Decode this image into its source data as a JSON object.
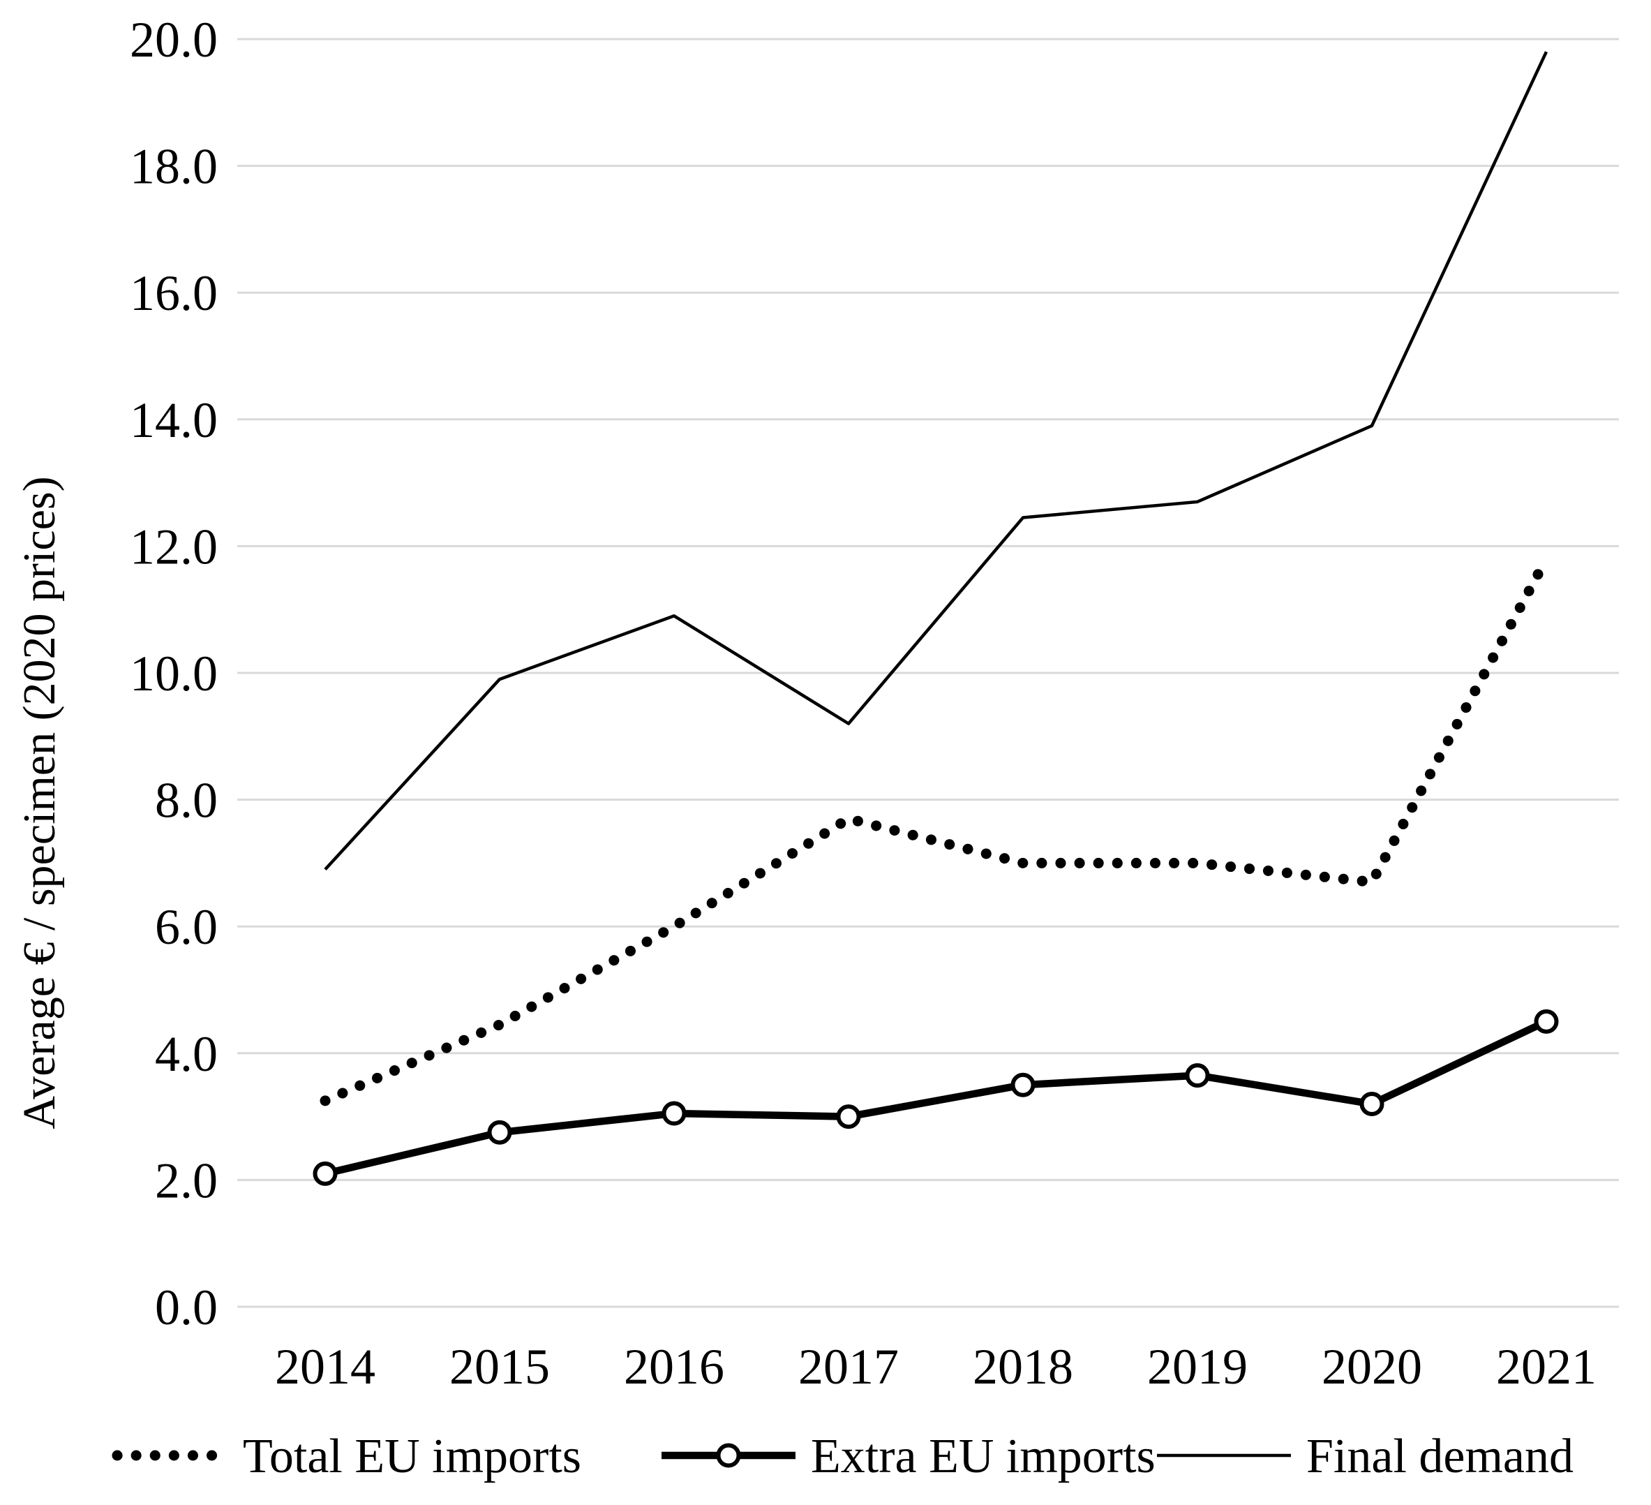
{
  "chart_data": {
    "type": "line",
    "title": "",
    "xlabel": "",
    "ylabel": "Average € / specimen (2020 prices)",
    "categories": [
      "2014",
      "2015",
      "2016",
      "2017",
      "2018",
      "2019",
      "2020",
      "2021"
    ],
    "series": [
      {
        "name": "Total EU imports",
        "line_style": "dotted",
        "marker": "none",
        "values": [
          3.25,
          4.45,
          6.0,
          7.7,
          7.0,
          7.0,
          6.7,
          11.8
        ]
      },
      {
        "name": "Extra EU imports",
        "line_style": "solid-thick",
        "marker": "open-circle",
        "values": [
          2.1,
          2.75,
          3.05,
          3.0,
          3.5,
          3.65,
          3.2,
          4.5
        ]
      },
      {
        "name": "Final demand",
        "line_style": "solid-thin",
        "marker": "none",
        "values": [
          6.9,
          9.9,
          10.9,
          9.2,
          12.45,
          12.7,
          13.9,
          19.8
        ]
      }
    ],
    "ylim": [
      0,
      20
    ],
    "y_tick_step": 2,
    "y_tick_labels": [
      "0.0",
      "2.0",
      "4.0",
      "6.0",
      "8.0",
      "10.0",
      "12.0",
      "14.0",
      "16.0",
      "18.0",
      "20.0"
    ],
    "grid": "horizontal-only",
    "legend_position": "bottom",
    "colors": {
      "line": "#000000",
      "text": "#000000",
      "gridline": "#d9d9d9",
      "background": "#ffffff",
      "marker_fill": "#ffffff"
    }
  }
}
